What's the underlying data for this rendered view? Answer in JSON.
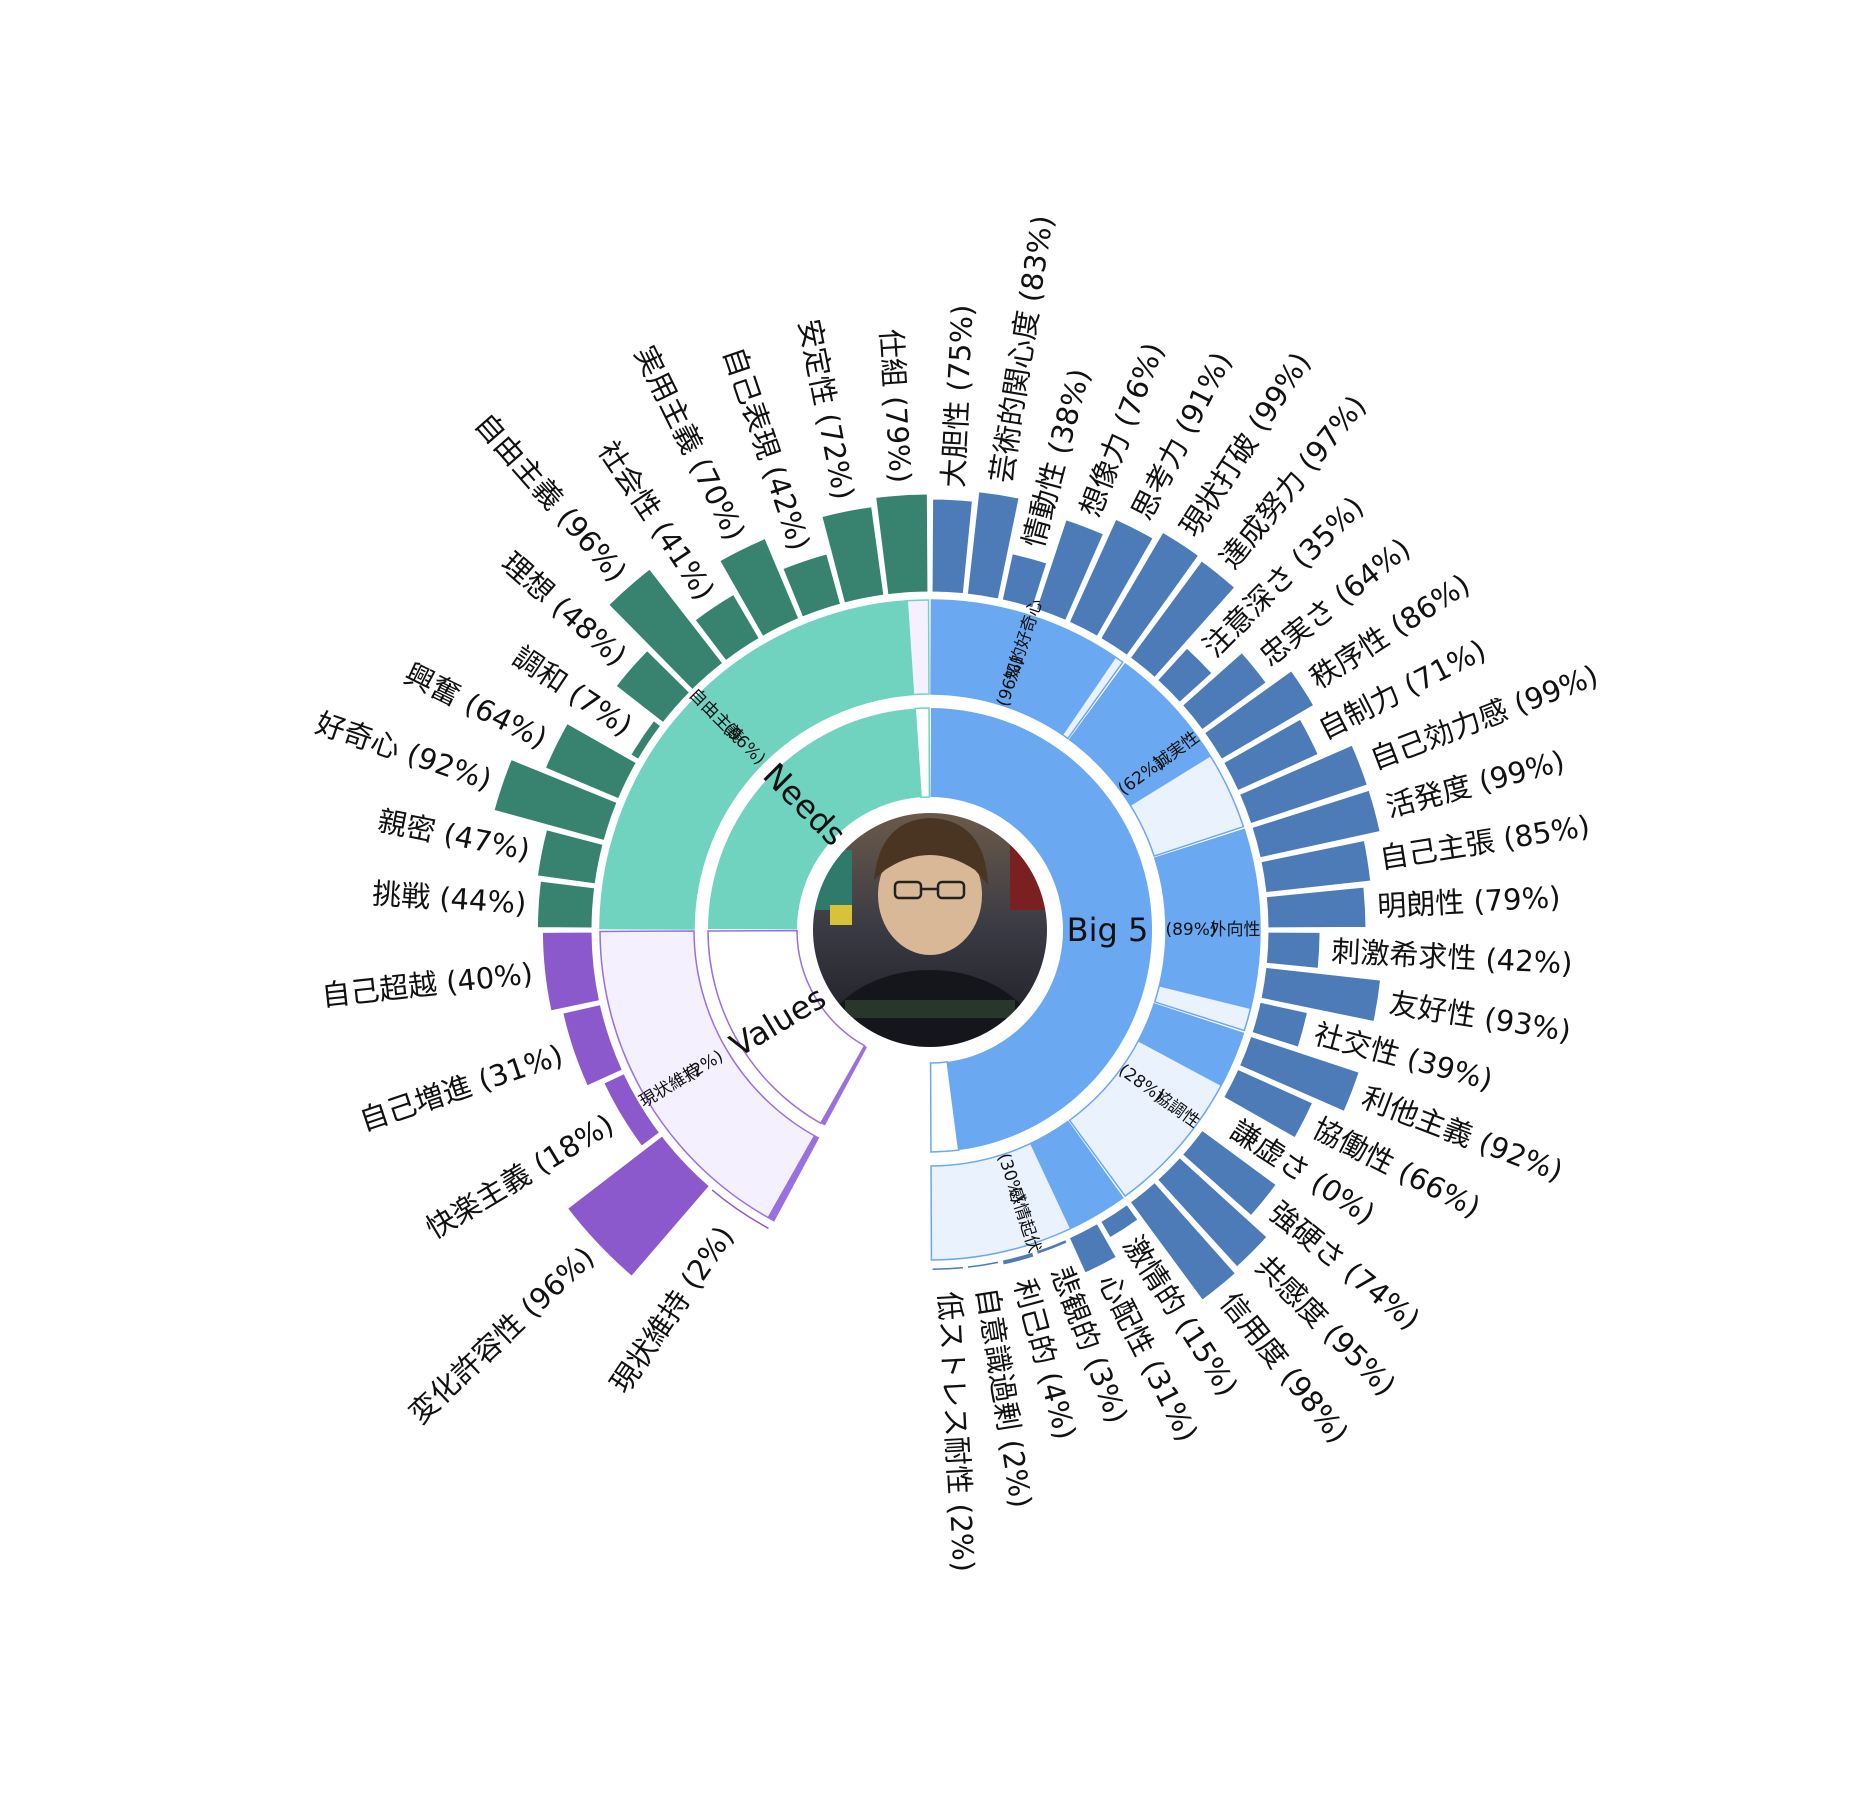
{
  "chart_data": {
    "type": "sunburst",
    "title": "",
    "center_photo": "avatar-photo",
    "categories": [
      {
        "id": "big5",
        "label": "Big 5",
        "color_inner": "#6aa8f2",
        "color_outer": "#4c7bb8",
        "inner": {
          "label": "知的好奇心",
          "pct_text": "(96%)",
          "value": 96
        },
        "mid": [
          {
            "label": "知的好奇心",
            "pct_text": "(96%)",
            "value": 96
          },
          {
            "label": "誠実性",
            "pct_text": "(62%)",
            "value": 62
          },
          {
            "label": "外向性",
            "pct_text": "(89%)",
            "value": 89
          },
          {
            "label": "協調性",
            "pct_text": "(28%)",
            "value": 28
          },
          {
            "label": "感情起伏",
            "pct_text": "(30%)",
            "value": 30
          }
        ],
        "outer": [
          {
            "label": "大胆性 (75%)",
            "value": 75,
            "group": 0
          },
          {
            "label": "芸術的関心度 (83%)",
            "value": 83,
            "group": 0
          },
          {
            "label": "情動性 (38%)",
            "value": 38,
            "group": 0
          },
          {
            "label": "想像力 (76%)",
            "value": 76,
            "group": 0
          },
          {
            "label": "思考力 (91%)",
            "value": 91,
            "group": 0
          },
          {
            "label": "現状打破 (99%)",
            "value": 99,
            "group": 0
          },
          {
            "label": "達成努力 (97%)",
            "value": 97,
            "group": 1
          },
          {
            "label": "注意深さ (35%)",
            "value": 35,
            "group": 1
          },
          {
            "label": "忠実さ (64%)",
            "value": 64,
            "group": 1
          },
          {
            "label": "秩序性 (86%)",
            "value": 86,
            "group": 1
          },
          {
            "label": "自制力 (71%)",
            "value": 71,
            "group": 1
          },
          {
            "label": "自己効力感 (99%)",
            "value": 99,
            "group": 1
          },
          {
            "label": "活発度 (99%)",
            "value": 99,
            "group": 2
          },
          {
            "label": "自己主張 (85%)",
            "value": 85,
            "group": 2
          },
          {
            "label": "明朗性 (79%)",
            "value": 79,
            "group": 2
          },
          {
            "label": "刺激希求性 (42%)",
            "value": 42,
            "group": 2
          },
          {
            "label": "友好性 (93%)",
            "value": 93,
            "group": 2
          },
          {
            "label": "社交性 (39%)",
            "value": 39,
            "group": 2
          },
          {
            "label": "利他主義 (92%)",
            "value": 92,
            "group": 3
          },
          {
            "label": "協働性 (66%)",
            "value": 66,
            "group": 3
          },
          {
            "label": "謙虚さ (0%)",
            "value": 0,
            "group": 3
          },
          {
            "label": "強硬さ (74%)",
            "value": 74,
            "group": 3
          },
          {
            "label": "共感度 (95%)",
            "value": 95,
            "group": 3
          },
          {
            "label": "信用度 (98%)",
            "value": 98,
            "group": 3
          },
          {
            "label": "激情的 (15%)",
            "value": 15,
            "group": 4
          },
          {
            "label": "心配性 (31%)",
            "value": 31,
            "group": 4
          },
          {
            "label": "悲観的 (3%)",
            "value": 3,
            "group": 4
          },
          {
            "label": "利己的 (4%)",
            "value": 4,
            "group": 4
          },
          {
            "label": "自意識過剰 (2%)",
            "value": 2,
            "group": 4
          },
          {
            "label": "低ストレス耐性 (2%)",
            "value": 2,
            "group": 4
          }
        ]
      },
      {
        "id": "values",
        "label": "Values",
        "color_inner": "#9a6fe0",
        "color_outer": "#8c59cc",
        "inner": {
          "label": "現状維持",
          "pct_text": "(2%)",
          "value": 2
        },
        "outer": [
          {
            "label": "現状維持 (2%)",
            "value": 2
          },
          {
            "label": "変化許容性 (96%)",
            "value": 96
          },
          {
            "label": "快楽主義 (18%)",
            "value": 18
          },
          {
            "label": "自己増進 (31%)",
            "value": 31
          },
          {
            "label": "自己超越 (40%)",
            "value": 40
          }
        ]
      },
      {
        "id": "needs",
        "label": "Needs",
        "color_inner": "#6fd3c0",
        "color_outer": "#37836f",
        "inner": {
          "label": "自由主義",
          "pct_text": "(96%)",
          "value": 96
        },
        "outer": [
          {
            "label": "挑戦 (44%)",
            "value": 44
          },
          {
            "label": "親密 (47%)",
            "value": 47
          },
          {
            "label": "好奇心 (92%)",
            "value": 92
          },
          {
            "label": "興奮 (64%)",
            "value": 64
          },
          {
            "label": "調和 (7%)",
            "value": 7
          },
          {
            "label": "理想 (48%)",
            "value": 48
          },
          {
            "label": "自由主義 (96%)",
            "value": 96
          },
          {
            "label": "社会性 (41%)",
            "value": 41
          },
          {
            "label": "実用主義 (70%)",
            "value": 70
          },
          {
            "label": "自己表現 (42%)",
            "value": 42
          },
          {
            "label": "安定性 (72%)",
            "value": 72
          },
          {
            "label": "仕組 (79%)",
            "value": 79
          }
        ]
      }
    ]
  }
}
